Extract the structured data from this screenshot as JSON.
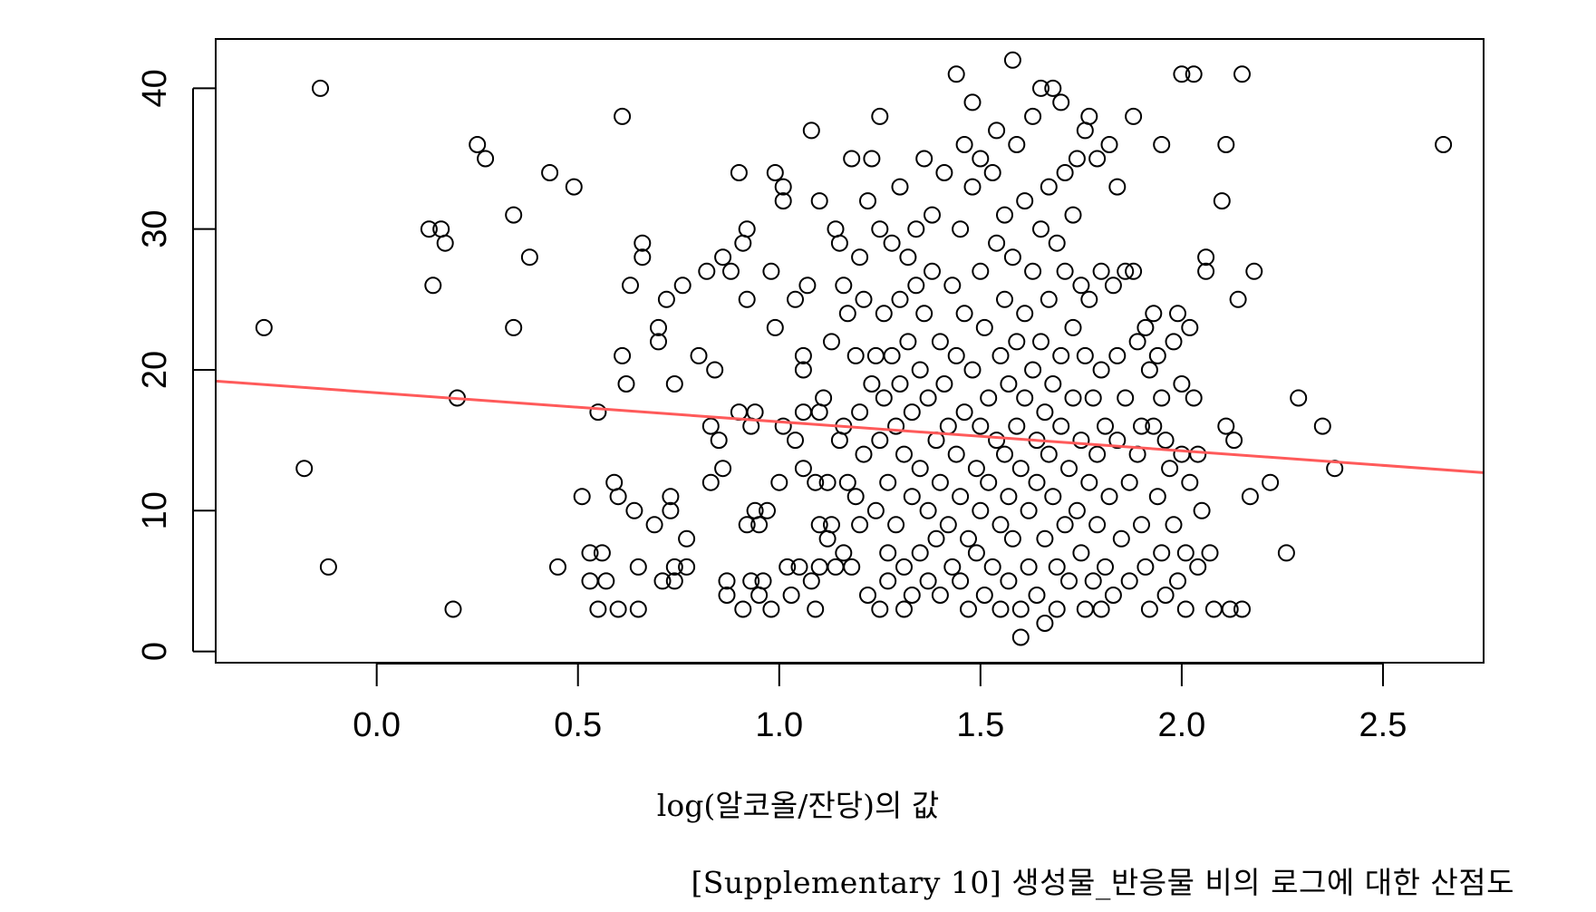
{
  "caption": "[Supplementary 10] 생성물_반응물 비의 로그에 대한 산점도",
  "chart_data": {
    "type": "scatter",
    "xlabel": "log(알코올/잔당)의 값",
    "ylabel": "",
    "xlim": [
      -0.4,
      2.75
    ],
    "ylim": [
      -0.8,
      43.5
    ],
    "x_ticks": [
      0.0,
      0.5,
      1.0,
      1.5,
      2.0,
      2.5
    ],
    "x_tick_labels": [
      "0.0",
      "0.5",
      "1.0",
      "1.5",
      "2.0",
      "2.5"
    ],
    "y_ticks": [
      0,
      10,
      20,
      30,
      40
    ],
    "y_tick_labels": [
      "0",
      "10",
      "20",
      "30",
      "40"
    ],
    "grid": false,
    "colors": {
      "points": "#000000",
      "trend": "#ff5a5a"
    },
    "trend_line": {
      "x": [
        -0.4,
        2.75
      ],
      "y": [
        19.2,
        12.7
      ]
    },
    "points": [
      [
        -0.28,
        23
      ],
      [
        -0.14,
        40
      ],
      [
        -0.18,
        13
      ],
      [
        -0.12,
        6
      ],
      [
        0.13,
        30
      ],
      [
        0.16,
        30
      ],
      [
        0.14,
        26
      ],
      [
        0.17,
        29
      ],
      [
        0.2,
        18
      ],
      [
        0.19,
        3
      ],
      [
        0.25,
        36
      ],
      [
        0.27,
        35
      ],
      [
        0.34,
        31
      ],
      [
        0.34,
        23
      ],
      [
        0.38,
        28
      ],
      [
        0.43,
        34
      ],
      [
        0.45,
        6
      ],
      [
        0.49,
        33
      ],
      [
        0.51,
        11
      ],
      [
        0.53,
        7
      ],
      [
        0.53,
        5
      ],
      [
        0.55,
        17
      ],
      [
        0.55,
        3
      ],
      [
        0.56,
        7
      ],
      [
        0.57,
        5
      ],
      [
        0.59,
        12
      ],
      [
        0.6,
        11
      ],
      [
        0.6,
        3
      ],
      [
        0.61,
        21
      ],
      [
        0.61,
        38
      ],
      [
        0.62,
        19
      ],
      [
        0.63,
        26
      ],
      [
        0.64,
        10
      ],
      [
        0.65,
        6
      ],
      [
        0.65,
        3
      ],
      [
        0.66,
        29
      ],
      [
        0.66,
        28
      ],
      [
        0.69,
        9
      ],
      [
        0.7,
        23
      ],
      [
        0.7,
        22
      ],
      [
        0.71,
        5
      ],
      [
        0.72,
        25
      ],
      [
        0.73,
        11
      ],
      [
        0.73,
        10
      ],
      [
        0.74,
        19
      ],
      [
        0.74,
        6
      ],
      [
        0.74,
        5
      ],
      [
        0.76,
        26
      ],
      [
        0.77,
        8
      ],
      [
        0.77,
        6
      ],
      [
        0.8,
        21
      ],
      [
        0.82,
        27
      ],
      [
        0.83,
        16
      ],
      [
        0.83,
        12
      ],
      [
        0.84,
        20
      ],
      [
        0.85,
        15
      ],
      [
        0.86,
        13
      ],
      [
        0.86,
        28
      ],
      [
        0.87,
        5
      ],
      [
        0.87,
        4
      ],
      [
        0.88,
        27
      ],
      [
        0.9,
        34
      ],
      [
        0.9,
        17
      ],
      [
        0.91,
        29
      ],
      [
        0.91,
        3
      ],
      [
        0.92,
        30
      ],
      [
        0.92,
        25
      ],
      [
        0.92,
        9
      ],
      [
        0.93,
        16
      ],
      [
        0.93,
        5
      ],
      [
        0.94,
        17
      ],
      [
        0.94,
        10
      ],
      [
        0.95,
        9
      ],
      [
        0.95,
        4
      ],
      [
        0.96,
        5
      ],
      [
        0.97,
        10
      ],
      [
        0.98,
        27
      ],
      [
        0.98,
        3
      ],
      [
        0.99,
        34
      ],
      [
        0.99,
        23
      ],
      [
        1.0,
        12
      ],
      [
        1.01,
        33
      ],
      [
        1.01,
        32
      ],
      [
        1.01,
        16
      ],
      [
        1.02,
        6
      ],
      [
        1.03,
        4
      ],
      [
        1.04,
        25
      ],
      [
        1.04,
        15
      ],
      [
        1.05,
        6
      ],
      [
        1.06,
        21
      ],
      [
        1.06,
        20
      ],
      [
        1.06,
        17
      ],
      [
        1.06,
        13
      ],
      [
        1.07,
        26
      ],
      [
        1.08,
        37
      ],
      [
        1.08,
        5
      ],
      [
        1.09,
        12
      ],
      [
        1.09,
        3
      ],
      [
        1.1,
        17
      ],
      [
        1.1,
        9
      ],
      [
        1.1,
        6
      ],
      [
        1.1,
        32
      ],
      [
        1.11,
        18
      ],
      [
        1.12,
        12
      ],
      [
        1.12,
        8
      ],
      [
        1.13,
        22
      ],
      [
        1.13,
        9
      ],
      [
        1.14,
        6
      ],
      [
        1.14,
        30
      ],
      [
        1.15,
        29
      ],
      [
        1.15,
        15
      ],
      [
        1.16,
        26
      ],
      [
        1.16,
        16
      ],
      [
        1.16,
        7
      ],
      [
        1.17,
        24
      ],
      [
        1.17,
        12
      ],
      [
        1.18,
        35
      ],
      [
        1.18,
        6
      ],
      [
        1.19,
        11
      ],
      [
        1.19,
        21
      ],
      [
        1.2,
        28
      ],
      [
        1.2,
        17
      ],
      [
        1.2,
        9
      ],
      [
        1.21,
        25
      ],
      [
        1.21,
        14
      ],
      [
        1.22,
        4
      ],
      [
        1.22,
        32
      ],
      [
        1.23,
        35
      ],
      [
        1.23,
        19
      ],
      [
        1.24,
        21
      ],
      [
        1.24,
        10
      ],
      [
        1.25,
        38
      ],
      [
        1.25,
        30
      ],
      [
        1.25,
        15
      ],
      [
        1.25,
        3
      ],
      [
        1.26,
        24
      ],
      [
        1.26,
        18
      ],
      [
        1.27,
        12
      ],
      [
        1.27,
        7
      ],
      [
        1.27,
        5
      ],
      [
        1.28,
        29
      ],
      [
        1.28,
        21
      ],
      [
        1.29,
        16
      ],
      [
        1.29,
        9
      ],
      [
        1.3,
        33
      ],
      [
        1.3,
        25
      ],
      [
        1.3,
        19
      ],
      [
        1.31,
        14
      ],
      [
        1.31,
        6
      ],
      [
        1.31,
        3
      ],
      [
        1.32,
        28
      ],
      [
        1.32,
        22
      ],
      [
        1.33,
        17
      ],
      [
        1.33,
        11
      ],
      [
        1.33,
        4
      ],
      [
        1.34,
        30
      ],
      [
        1.34,
        26
      ],
      [
        1.35,
        20
      ],
      [
        1.35,
        13
      ],
      [
        1.35,
        7
      ],
      [
        1.36,
        35
      ],
      [
        1.36,
        24
      ],
      [
        1.37,
        18
      ],
      [
        1.37,
        10
      ],
      [
        1.37,
        5
      ],
      [
        1.38,
        31
      ],
      [
        1.38,
        27
      ],
      [
        1.39,
        15
      ],
      [
        1.39,
        8
      ],
      [
        1.4,
        22
      ],
      [
        1.4,
        12
      ],
      [
        1.4,
        4
      ],
      [
        1.41,
        34
      ],
      [
        1.41,
        19
      ],
      [
        1.42,
        16
      ],
      [
        1.42,
        9
      ],
      [
        1.43,
        26
      ],
      [
        1.43,
        6
      ],
      [
        1.44,
        41
      ],
      [
        1.44,
        21
      ],
      [
        1.44,
        14
      ],
      [
        1.45,
        30
      ],
      [
        1.45,
        11
      ],
      [
        1.45,
        5
      ],
      [
        1.46,
        36
      ],
      [
        1.46,
        24
      ],
      [
        1.46,
        17
      ],
      [
        1.47,
        8
      ],
      [
        1.47,
        3
      ],
      [
        1.48,
        39
      ],
      [
        1.48,
        33
      ],
      [
        1.48,
        20
      ],
      [
        1.49,
        13
      ],
      [
        1.49,
        7
      ],
      [
        1.5,
        35
      ],
      [
        1.5,
        27
      ],
      [
        1.5,
        16
      ],
      [
        1.5,
        10
      ],
      [
        1.51,
        4
      ],
      [
        1.51,
        23
      ],
      [
        1.52,
        18
      ],
      [
        1.52,
        12
      ],
      [
        1.53,
        34
      ],
      [
        1.53,
        6
      ],
      [
        1.54,
        37
      ],
      [
        1.54,
        29
      ],
      [
        1.54,
        15
      ],
      [
        1.55,
        21
      ],
      [
        1.55,
        9
      ],
      [
        1.55,
        3
      ],
      [
        1.56,
        31
      ],
      [
        1.56,
        25
      ],
      [
        1.56,
        14
      ],
      [
        1.57,
        19
      ],
      [
        1.57,
        11
      ],
      [
        1.57,
        5
      ],
      [
        1.58,
        42
      ],
      [
        1.58,
        28
      ],
      [
        1.58,
        8
      ],
      [
        1.59,
        36
      ],
      [
        1.59,
        22
      ],
      [
        1.59,
        16
      ],
      [
        1.6,
        13
      ],
      [
        1.6,
        1
      ],
      [
        1.6,
        3
      ],
      [
        1.61,
        32
      ],
      [
        1.61,
        24
      ],
      [
        1.61,
        18
      ],
      [
        1.62,
        10
      ],
      [
        1.62,
        6
      ],
      [
        1.63,
        38
      ],
      [
        1.63,
        27
      ],
      [
        1.63,
        20
      ],
      [
        1.64,
        15
      ],
      [
        1.64,
        12
      ],
      [
        1.64,
        4
      ],
      [
        1.65,
        40
      ],
      [
        1.65,
        30
      ],
      [
        1.65,
        22
      ],
      [
        1.66,
        17
      ],
      [
        1.66,
        8
      ],
      [
        1.66,
        2
      ],
      [
        1.67,
        33
      ],
      [
        1.67,
        25
      ],
      [
        1.67,
        14
      ],
      [
        1.68,
        40
      ],
      [
        1.68,
        19
      ],
      [
        1.68,
        11
      ],
      [
        1.69,
        29
      ],
      [
        1.69,
        6
      ],
      [
        1.69,
        3
      ],
      [
        1.7,
        39
      ],
      [
        1.7,
        21
      ],
      [
        1.7,
        16
      ],
      [
        1.71,
        34
      ],
      [
        1.71,
        27
      ],
      [
        1.71,
        9
      ],
      [
        1.72,
        13
      ],
      [
        1.72,
        5
      ],
      [
        1.73,
        31
      ],
      [
        1.73,
        23
      ],
      [
        1.73,
        18
      ],
      [
        1.74,
        35
      ],
      [
        1.74,
        10
      ],
      [
        1.75,
        26
      ],
      [
        1.75,
        15
      ],
      [
        1.75,
        7
      ],
      [
        1.76,
        37
      ],
      [
        1.76,
        21
      ],
      [
        1.76,
        3
      ],
      [
        1.77,
        38
      ],
      [
        1.77,
        25
      ],
      [
        1.77,
        12
      ],
      [
        1.78,
        18
      ],
      [
        1.78,
        5
      ],
      [
        1.79,
        35
      ],
      [
        1.79,
        14
      ],
      [
        1.79,
        9
      ],
      [
        1.8,
        27
      ],
      [
        1.8,
        20
      ],
      [
        1.8,
        3
      ],
      [
        1.81,
        16
      ],
      [
        1.81,
        6
      ],
      [
        1.82,
        36
      ],
      [
        1.82,
        11
      ],
      [
        1.83,
        26
      ],
      [
        1.83,
        4
      ],
      [
        1.84,
        33
      ],
      [
        1.84,
        21
      ],
      [
        1.84,
        15
      ],
      [
        1.85,
        8
      ],
      [
        1.86,
        27
      ],
      [
        1.86,
        18
      ],
      [
        1.87,
        12
      ],
      [
        1.87,
        5
      ],
      [
        1.88,
        38
      ],
      [
        1.88,
        27
      ],
      [
        1.89,
        22
      ],
      [
        1.89,
        14
      ],
      [
        1.9,
        16
      ],
      [
        1.9,
        9
      ],
      [
        1.91,
        23
      ],
      [
        1.91,
        6
      ],
      [
        1.92,
        20
      ],
      [
        1.92,
        3
      ],
      [
        1.93,
        24
      ],
      [
        1.93,
        16
      ],
      [
        1.94,
        21
      ],
      [
        1.94,
        11
      ],
      [
        1.95,
        36
      ],
      [
        1.95,
        18
      ],
      [
        1.95,
        7
      ],
      [
        1.96,
        15
      ],
      [
        1.96,
        4
      ],
      [
        1.97,
        13
      ],
      [
        1.98,
        22
      ],
      [
        1.98,
        9
      ],
      [
        1.99,
        24
      ],
      [
        1.99,
        5
      ],
      [
        2.0,
        41
      ],
      [
        2.0,
        19
      ],
      [
        2.0,
        14
      ],
      [
        2.01,
        3
      ],
      [
        2.01,
        7
      ],
      [
        2.02,
        23
      ],
      [
        2.02,
        12
      ],
      [
        2.03,
        41
      ],
      [
        2.03,
        18
      ],
      [
        2.04,
        14
      ],
      [
        2.04,
        6
      ],
      [
        2.05,
        10
      ],
      [
        2.06,
        28
      ],
      [
        2.06,
        27
      ],
      [
        2.07,
        7
      ],
      [
        2.08,
        3
      ],
      [
        2.1,
        32
      ],
      [
        2.11,
        36
      ],
      [
        2.11,
        16
      ],
      [
        2.12,
        3
      ],
      [
        2.13,
        15
      ],
      [
        2.14,
        25
      ],
      [
        2.15,
        3
      ],
      [
        2.15,
        41
      ],
      [
        2.17,
        11
      ],
      [
        2.18,
        27
      ],
      [
        2.22,
        12
      ],
      [
        2.26,
        7
      ],
      [
        2.29,
        18
      ],
      [
        2.35,
        16
      ],
      [
        2.38,
        13
      ],
      [
        2.65,
        36
      ]
    ]
  }
}
